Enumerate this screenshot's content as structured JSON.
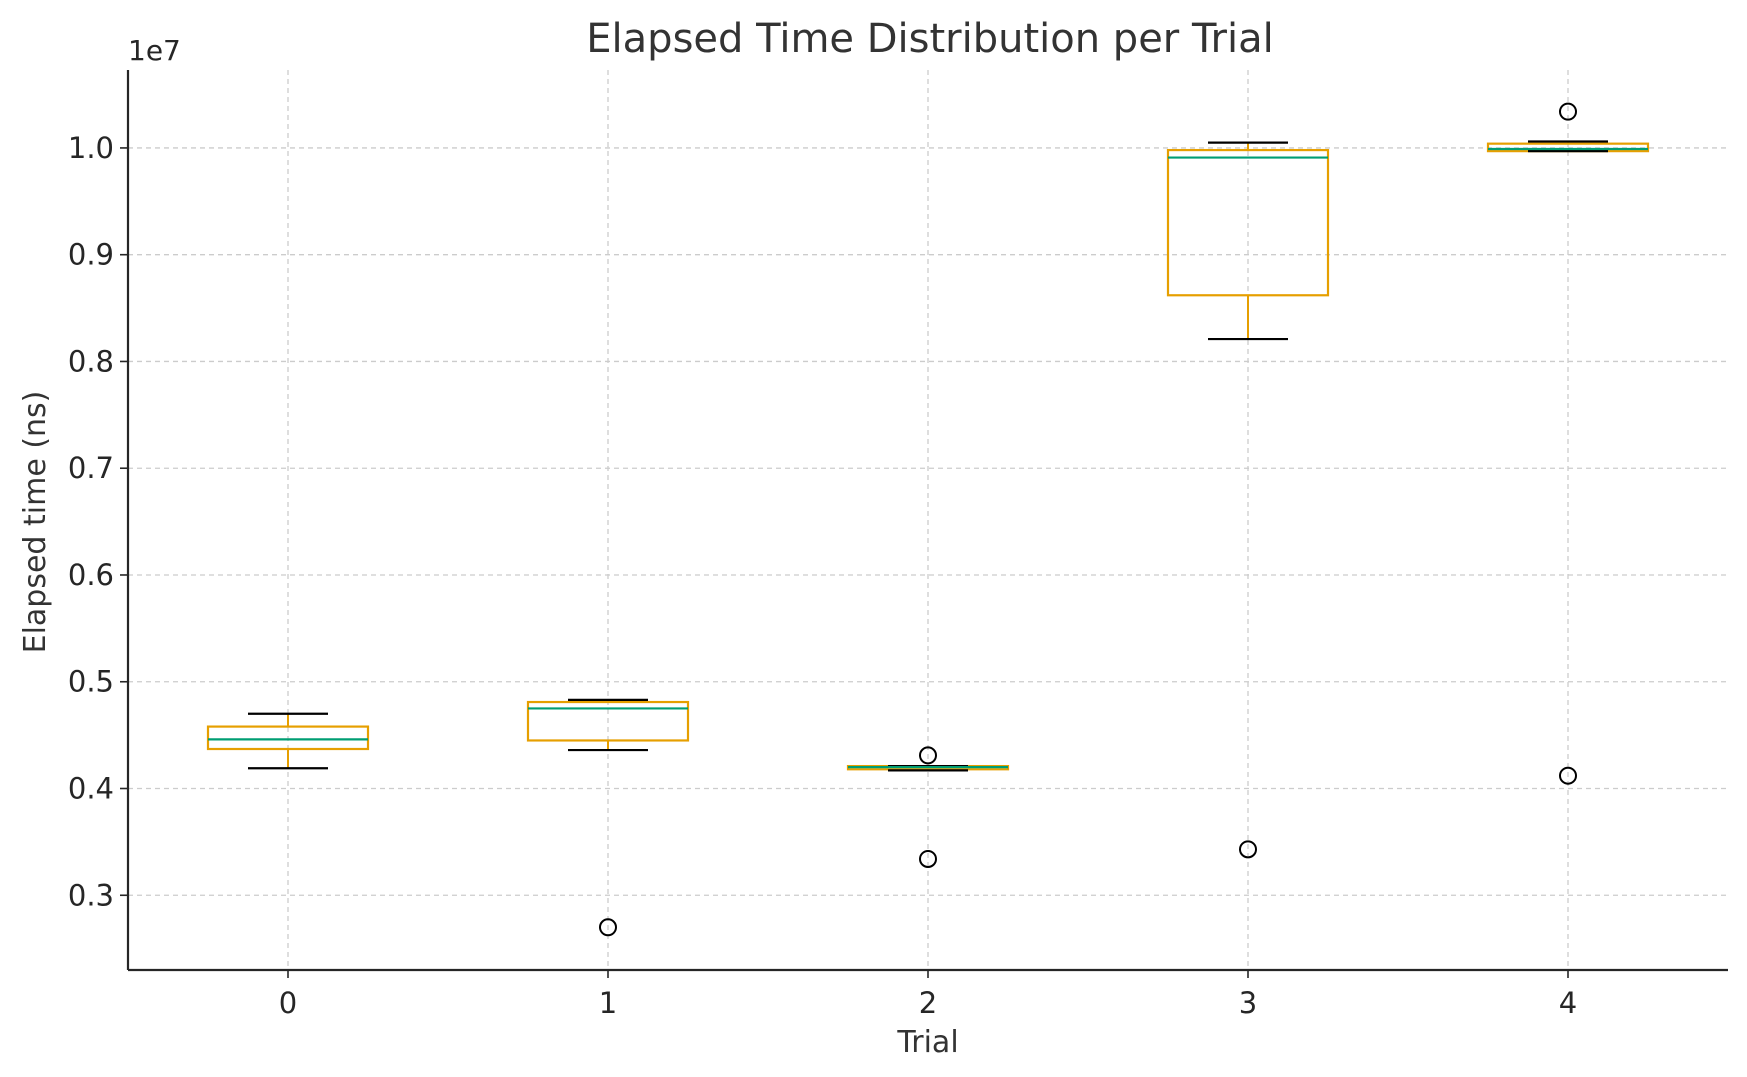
{
  "chart_data": {
    "type": "box",
    "title": "Elapsed Time Distribution per Trial",
    "xlabel": "Trial",
    "ylabel": "Elapsed time (ns)",
    "y_offset_label": "1e7",
    "y_scale_factor": 10000000,
    "categories": [
      "0",
      "1",
      "2",
      "3",
      "4"
    ],
    "xlim": [
      -0.5,
      4.5
    ],
    "ylim": [
      0.23,
      1.073
    ],
    "yticks": [
      {
        "value": 0.3,
        "label": "0.3"
      },
      {
        "value": 0.4,
        "label": "0.4"
      },
      {
        "value": 0.5,
        "label": "0.5"
      },
      {
        "value": 0.6,
        "label": "0.6"
      },
      {
        "value": 0.7,
        "label": "0.7"
      },
      {
        "value": 0.8,
        "label": "0.8"
      },
      {
        "value": 0.9,
        "label": "0.9"
      },
      {
        "value": 1.0,
        "label": "1.0"
      }
    ],
    "grid": true,
    "colors": {
      "box": "#E69F00",
      "median": "#009E73",
      "whisker": "#E69F00",
      "cap": "#000000",
      "flier": "#000000"
    },
    "boxes": [
      {
        "label": "0",
        "whisker_low": 0.419,
        "q1": 0.437,
        "median": 0.446,
        "q3": 0.458,
        "whisker_high": 0.47,
        "fliers": []
      },
      {
        "label": "1",
        "whisker_low": 0.436,
        "q1": 0.445,
        "median": 0.475,
        "q3": 0.481,
        "whisker_high": 0.483,
        "fliers": [
          0.27
        ]
      },
      {
        "label": "2",
        "whisker_low": 0.417,
        "q1": 0.418,
        "median": 0.42,
        "q3": 0.421,
        "whisker_high": 0.421,
        "fliers": [
          0.431,
          0.334
        ]
      },
      {
        "label": "3",
        "whisker_low": 0.821,
        "q1": 0.862,
        "median": 0.991,
        "q3": 0.998,
        "whisker_high": 1.005,
        "fliers": [
          0.343
        ]
      },
      {
        "label": "4",
        "whisker_low": 0.997,
        "q1": 0.997,
        "median": 0.999,
        "q3": 1.004,
        "whisker_high": 1.006,
        "fliers": [
          1.034,
          0.412
        ]
      }
    ]
  }
}
